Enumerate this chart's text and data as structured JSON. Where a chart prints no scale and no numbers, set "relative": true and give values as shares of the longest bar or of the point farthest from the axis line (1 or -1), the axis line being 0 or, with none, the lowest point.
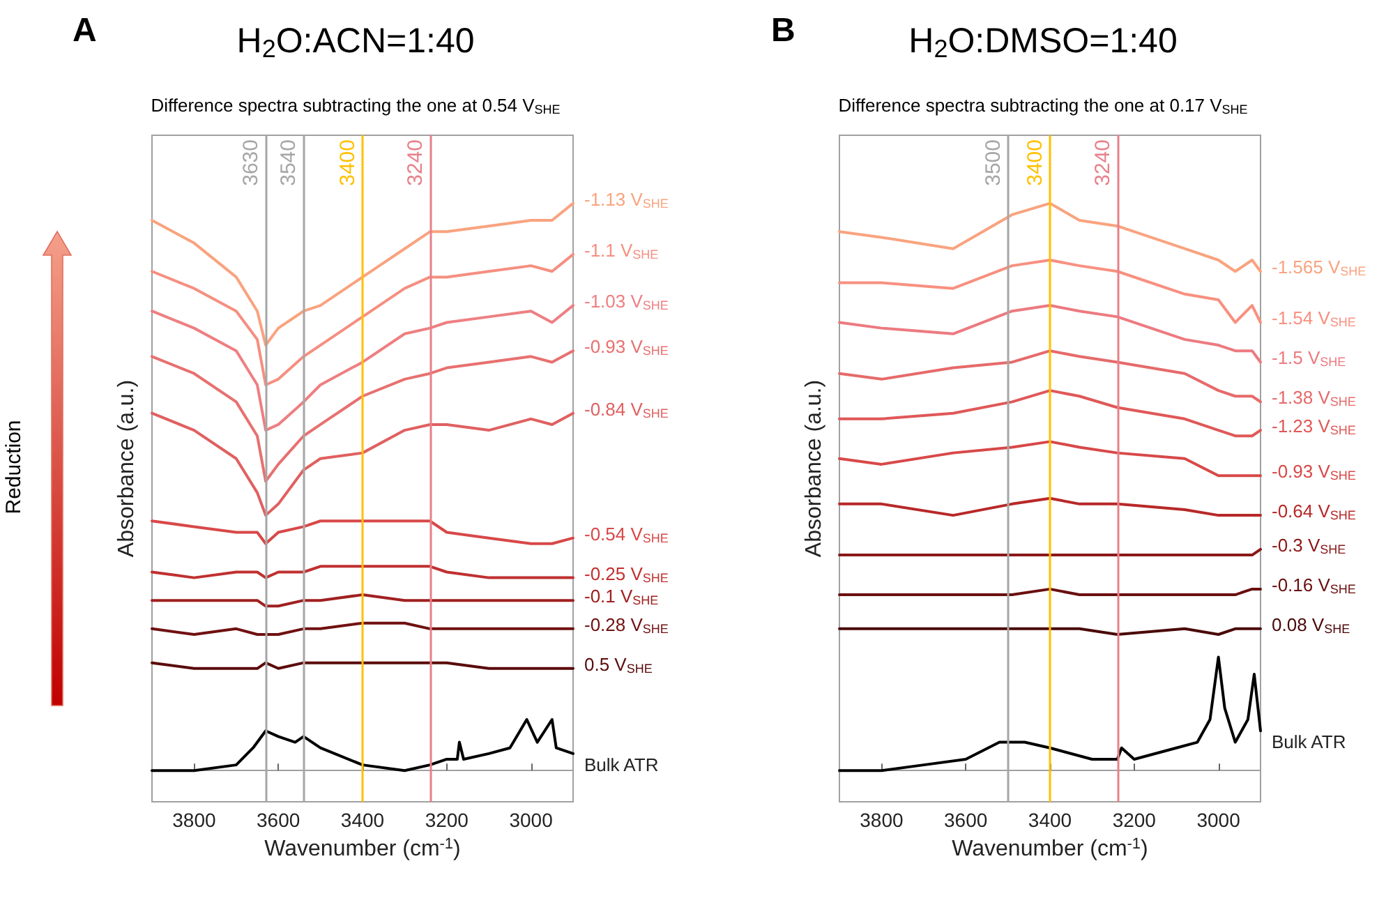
{
  "chart_data": [
    {
      "type": "line",
      "title": "H$_{2}$O:ACN=1:40",
      "subtitle": "Difference spectra subtracting the one at 0.54 V$_{SHE}$",
      "xlabel": "Wavenumber (cm$^{-1}$)",
      "ylabel": "Absorbance (a.u.)",
      "annotations": [
        "A",
        "Reduction"
      ],
      "relative": true,
      "legend": false,
      "grid": false,
      "line_style": "solid",
      "xlim": [
        3900,
        2900
      ],
      "xticks": [
        3800,
        3600,
        3400,
        3200,
        3000
      ],
      "x": [
        3900,
        3800,
        3700,
        3650,
        3630,
        3600,
        3540,
        3500,
        3400,
        3300,
        3240,
        3200,
        3100,
        3000,
        2950,
        2900
      ],
      "ref_lines": [
        {
          "axis": "x",
          "value": 3630,
          "label": "3630",
          "color": "#a6a6a6"
        },
        {
          "axis": "x",
          "value": 3540,
          "label": "3540",
          "color": "#a6a6a6"
        },
        {
          "axis": "x",
          "value": 3400,
          "label": "3400",
          "color": "#ffc000"
        },
        {
          "axis": "x",
          "value": 3240,
          "label": "3240",
          "color": "#e8808a"
        }
      ],
      "series": [
        {
          "name": "-1.13 V$_{SHE}$",
          "color": "#f9a37f",
          "values": [
            0.97,
            0.93,
            0.87,
            0.81,
            0.75,
            0.78,
            0.81,
            0.82,
            0.87,
            0.92,
            0.95,
            0.95,
            0.96,
            0.97,
            0.97,
            1.0
          ]
        },
        {
          "name": "-1.1 V$_{SHE}$",
          "color": "#f58f80",
          "values": [
            0.88,
            0.85,
            0.81,
            0.76,
            0.68,
            0.69,
            0.73,
            0.75,
            0.8,
            0.85,
            0.87,
            0.87,
            0.88,
            0.89,
            0.88,
            0.91
          ]
        },
        {
          "name": "-1.03 V$_{SHE}$",
          "color": "#ee7f82",
          "values": [
            0.81,
            0.78,
            0.74,
            0.68,
            0.6,
            0.61,
            0.65,
            0.68,
            0.72,
            0.77,
            0.78,
            0.79,
            0.8,
            0.81,
            0.79,
            0.82
          ]
        },
        {
          "name": "-0.93 V$_{SHE}$",
          "color": "#e87070",
          "values": [
            0.73,
            0.7,
            0.65,
            0.59,
            0.51,
            0.54,
            0.59,
            0.61,
            0.66,
            0.69,
            0.7,
            0.71,
            0.72,
            0.73,
            0.72,
            0.74
          ]
        },
        {
          "name": "-0.84 V$_{SHE}$",
          "color": "#e06060",
          "values": [
            0.63,
            0.6,
            0.55,
            0.49,
            0.45,
            0.47,
            0.53,
            0.55,
            0.56,
            0.6,
            0.61,
            0.61,
            0.6,
            0.62,
            0.61,
            0.63
          ]
        },
        {
          "name": "-0.54 V$_{SHE}$",
          "color": "#d84848",
          "values": [
            0.44,
            0.43,
            0.42,
            0.42,
            0.4,
            0.42,
            0.43,
            0.44,
            0.44,
            0.44,
            0.44,
            0.42,
            0.41,
            0.4,
            0.4,
            0.41
          ]
        },
        {
          "name": "-0.25 V$_{SHE}$",
          "color": "#c03030",
          "values": [
            0.35,
            0.34,
            0.35,
            0.35,
            0.34,
            0.35,
            0.35,
            0.36,
            0.36,
            0.36,
            0.36,
            0.35,
            0.34,
            0.34,
            0.34,
            0.34
          ]
        },
        {
          "name": "-0.1 V$_{SHE}$",
          "color": "#a02020",
          "values": [
            0.3,
            0.3,
            0.3,
            0.3,
            0.29,
            0.29,
            0.3,
            0.3,
            0.31,
            0.3,
            0.3,
            0.3,
            0.3,
            0.3,
            0.3,
            0.3
          ]
        },
        {
          "name": "-0.28 V$_{SHE}$",
          "color": "#701010",
          "values": [
            0.25,
            0.24,
            0.25,
            0.24,
            0.24,
            0.24,
            0.25,
            0.25,
            0.26,
            0.26,
            0.25,
            0.25,
            0.25,
            0.25,
            0.25,
            0.25
          ]
        },
        {
          "name": "0.5 V$_{SHE}$",
          "color": "#5a0a0a",
          "values": [
            0.19,
            0.18,
            0.18,
            0.18,
            0.19,
            0.18,
            0.19,
            0.19,
            0.19,
            0.19,
            0.19,
            0.19,
            0.18,
            0.18,
            0.18,
            0.18
          ]
        },
        {
          "name": "Bulk ATR",
          "color": "#000000",
          "x": [
            3900,
            3800,
            3700,
            3660,
            3630,
            3600,
            3560,
            3540,
            3500,
            3400,
            3300,
            3240,
            3200,
            3175,
            3170,
            3160,
            3100,
            3050,
            3010,
            2985,
            2950,
            2940,
            2900
          ],
          "values": [
            0,
            0,
            0.01,
            0.04,
            0.07,
            0.06,
            0.05,
            0.06,
            0.04,
            0.01,
            0,
            0.01,
            0.02,
            0.02,
            0.05,
            0.02,
            0.03,
            0.04,
            0.09,
            0.05,
            0.09,
            0.04,
            0.03
          ]
        }
      ]
    },
    {
      "type": "line",
      "title": "H$_{2}$O:DMSO=1:40",
      "subtitle": "Difference spectra subtracting the one at 0.17 V$_{SHE}$",
      "xlabel": "Wavenumber (cm$^{-1}$)",
      "ylabel": "Absorbance (a.u.)",
      "annotations": [
        "B"
      ],
      "relative": true,
      "legend": false,
      "grid": false,
      "line_style": "solid",
      "xlim": [
        3900,
        2900
      ],
      "xticks": [
        3800,
        3600,
        3400,
        3200,
        3000
      ],
      "x": [
        3900,
        3800,
        3630,
        3490,
        3400,
        3330,
        3240,
        3080,
        3000,
        2960,
        2920,
        2900
      ],
      "ref_lines": [
        {
          "axis": "x",
          "value": 3500,
          "label": "3500",
          "color": "#a6a6a6"
        },
        {
          "axis": "x",
          "value": 3400,
          "label": "3400",
          "color": "#ffc000"
        },
        {
          "axis": "x",
          "value": 3240,
          "label": "3240",
          "color": "#e8808a"
        }
      ],
      "series": [
        {
          "name": "-1.565 V$_{SHE}$",
          "color": "#f9a37f",
          "values": [
            0.95,
            0.94,
            0.92,
            0.98,
            1.0,
            0.97,
            0.96,
            0.92,
            0.9,
            0.88,
            0.9,
            0.88
          ]
        },
        {
          "name": "-1.54 V$_{SHE}$",
          "color": "#f89080",
          "values": [
            0.86,
            0.86,
            0.85,
            0.89,
            0.9,
            0.89,
            0.88,
            0.84,
            0.83,
            0.79,
            0.82,
            0.79
          ]
        },
        {
          "name": "-1.5 V$_{SHE}$",
          "color": "#ec7a80",
          "values": [
            0.79,
            0.78,
            0.77,
            0.81,
            0.82,
            0.81,
            0.8,
            0.76,
            0.75,
            0.74,
            0.74,
            0.72
          ]
        },
        {
          "name": "-1.38 V$_{SHE}$",
          "color": "#e66a6a",
          "values": [
            0.7,
            0.69,
            0.71,
            0.72,
            0.74,
            0.73,
            0.72,
            0.7,
            0.67,
            0.66,
            0.66,
            0.65
          ]
        },
        {
          "name": "-1.23 V$_{SHE}$",
          "color": "#e05858",
          "values": [
            0.62,
            0.62,
            0.63,
            0.65,
            0.67,
            0.66,
            0.64,
            0.62,
            0.6,
            0.59,
            0.59,
            0.6
          ]
        },
        {
          "name": "-0.93 V$_{SHE}$",
          "color": "#d84848",
          "values": [
            0.55,
            0.54,
            0.56,
            0.57,
            0.58,
            0.57,
            0.56,
            0.55,
            0.52,
            0.52,
            0.52,
            0.52
          ]
        },
        {
          "name": "-0.64 V$_{SHE}$",
          "color": "#b82828",
          "values": [
            0.47,
            0.47,
            0.45,
            0.47,
            0.48,
            0.47,
            0.47,
            0.46,
            0.45,
            0.45,
            0.45,
            0.45
          ]
        },
        {
          "name": "-0.3 V$_{SHE}$",
          "color": "#8a1818",
          "values": [
            0.38,
            0.38,
            0.38,
            0.38,
            0.38,
            0.38,
            0.38,
            0.38,
            0.38,
            0.38,
            0.38,
            0.39
          ]
        },
        {
          "name": "-0.16 V$_{SHE}$",
          "color": "#6a0f0f",
          "values": [
            0.31,
            0.31,
            0.31,
            0.31,
            0.32,
            0.31,
            0.31,
            0.31,
            0.31,
            0.31,
            0.32,
            0.32
          ]
        },
        {
          "name": "0.08 V$_{SHE}$",
          "color": "#4a0808",
          "values": [
            0.25,
            0.25,
            0.25,
            0.25,
            0.25,
            0.25,
            0.24,
            0.25,
            0.24,
            0.25,
            0.25,
            0.25
          ]
        },
        {
          "name": "Bulk ATR",
          "color": "#000000",
          "x": [
            3900,
            3800,
            3700,
            3600,
            3520,
            3460,
            3400,
            3300,
            3240,
            3230,
            3200,
            3100,
            3050,
            3020,
            3000,
            2985,
            2960,
            2930,
            2915,
            2900
          ],
          "values": [
            0,
            0,
            0.01,
            0.02,
            0.05,
            0.05,
            0.04,
            0.02,
            0.02,
            0.04,
            0.02,
            0.04,
            0.05,
            0.09,
            0.2,
            0.11,
            0.05,
            0.09,
            0.17,
            0.07
          ]
        }
      ]
    }
  ]
}
